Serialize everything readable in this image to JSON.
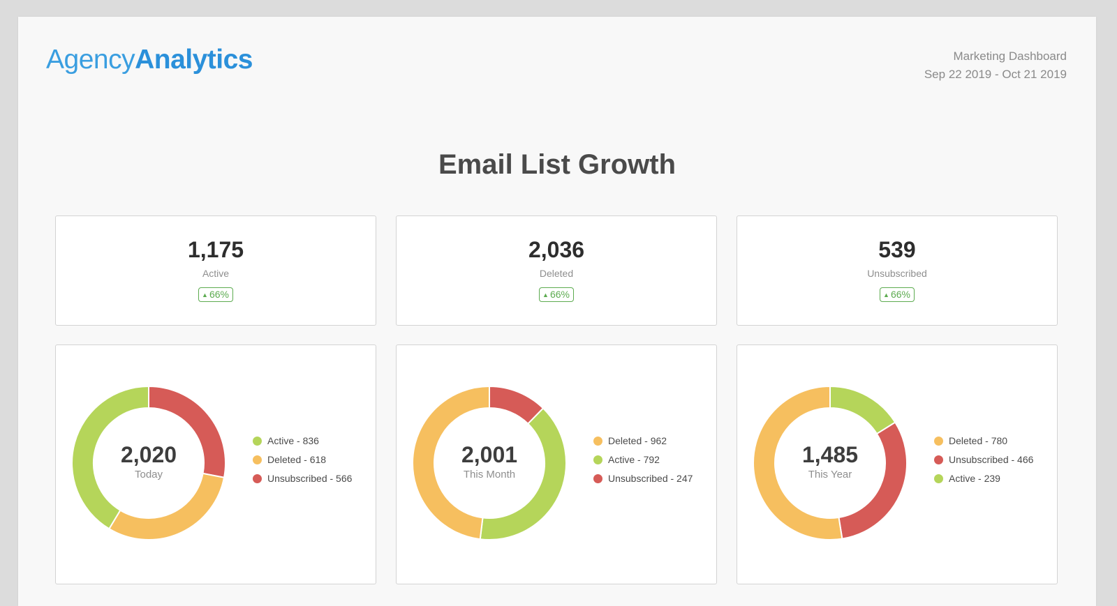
{
  "colors": {
    "active": "#b5d55a",
    "deleted": "#f6bf5f",
    "unsubscribed": "#d65b57"
  },
  "header": {
    "logo_light": "Agency",
    "logo_bold": "Analytics",
    "dashboard_name": "Marketing Dashboard",
    "date_range": "Sep 22 2019 - Oct 21 2019"
  },
  "title": "Email List Growth",
  "kpis": [
    {
      "value": "1,175",
      "label": "Active",
      "change": "66%",
      "trend": "up"
    },
    {
      "value": "2,036",
      "label": "Deleted",
      "change": "66%",
      "trend": "up"
    },
    {
      "value": "539",
      "label": "Unsubscribed",
      "change": "66%",
      "trend": "up"
    }
  ],
  "chart_data": [
    {
      "type": "pie",
      "center_value": "2,020",
      "center_label": "Today",
      "slices": [
        {
          "name": "Unsubscribed",
          "value": 566,
          "legend": "Unsubscribed - 566",
          "color": "#d65b57"
        },
        {
          "name": "Deleted",
          "value": 618,
          "legend": "Deleted - 618",
          "color": "#f6bf5f"
        },
        {
          "name": "Active",
          "value": 836,
          "legend": "Active - 836",
          "color": "#b5d55a"
        }
      ],
      "legend_order": [
        2,
        1,
        0
      ]
    },
    {
      "type": "pie",
      "center_value": "2,001",
      "center_label": "This Month",
      "slices": [
        {
          "name": "Unsubscribed",
          "value": 247,
          "legend": "Unsubscribed - 247",
          "color": "#d65b57"
        },
        {
          "name": "Active",
          "value": 792,
          "legend": "Active - 792",
          "color": "#b5d55a"
        },
        {
          "name": "Deleted",
          "value": 962,
          "legend": "Deleted - 962",
          "color": "#f6bf5f"
        }
      ],
      "legend_order": [
        2,
        1,
        0
      ]
    },
    {
      "type": "pie",
      "center_value": "1,485",
      "center_label": "This Year",
      "slices": [
        {
          "name": "Active",
          "value": 239,
          "legend": "Active - 239",
          "color": "#b5d55a"
        },
        {
          "name": "Unsubscribed",
          "value": 466,
          "legend": "Unsubscribed - 466",
          "color": "#d65b57"
        },
        {
          "name": "Deleted",
          "value": 780,
          "legend": "Deleted - 780",
          "color": "#f6bf5f"
        }
      ],
      "legend_order": [
        2,
        1,
        0
      ]
    }
  ]
}
